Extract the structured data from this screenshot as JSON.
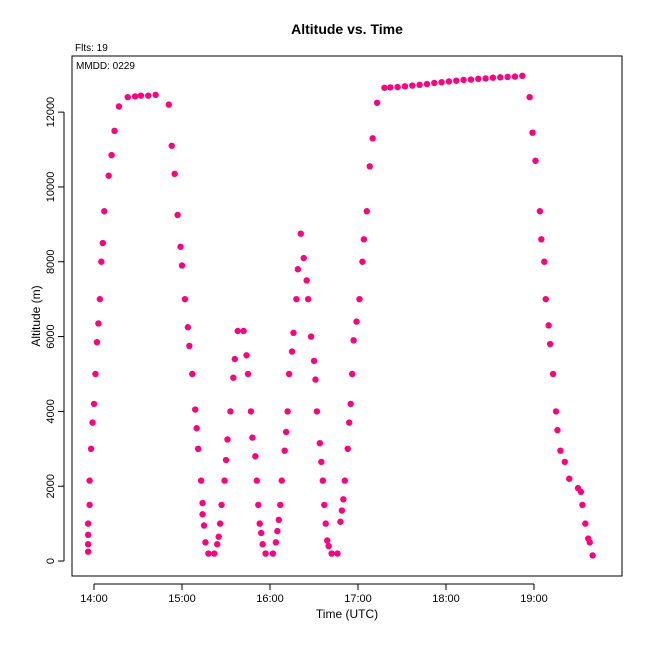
{
  "chart_data": {
    "type": "scatter",
    "title": "Altitude  vs. Time",
    "xlabel": "Time (UTC)",
    "ylabel": "Altitude (m)",
    "annotations": {
      "flights": "Flts: 19",
      "date": "MMDD: 0229"
    },
    "x_ticks": [
      "14:00",
      "15:00",
      "16:00",
      "17:00",
      "18:00",
      "19:00"
    ],
    "y_ticks": [
      "0",
      "2000",
      "4000",
      "6000",
      "8000",
      "10000",
      "12000"
    ],
    "xlim": [
      "13:45",
      "20:00"
    ],
    "ylim": [
      -400,
      13500
    ],
    "grid": false,
    "legend": "none",
    "point_color": "#ff0080",
    "points": [
      [
        "13:56",
        250
      ],
      [
        "13:56",
        450
      ],
      [
        "13:56",
        700
      ],
      [
        "13:56",
        1000
      ],
      [
        "13:57",
        1500
      ],
      [
        "13:57",
        2150
      ],
      [
        "13:58",
        3000
      ],
      [
        "13:59",
        3700
      ],
      [
        "14:00",
        4200
      ],
      [
        "14:01",
        5000
      ],
      [
        "14:02",
        5850
      ],
      [
        "14:03",
        6350
      ],
      [
        "14:04",
        7000
      ],
      [
        "14:05",
        8000
      ],
      [
        "14:06",
        8500
      ],
      [
        "14:07",
        9350
      ],
      [
        "14:10",
        10300
      ],
      [
        "14:12",
        10850
      ],
      [
        "14:14",
        11500
      ],
      [
        "14:17",
        12150
      ],
      [
        "14:23",
        12400
      ],
      [
        "14:28",
        12420
      ],
      [
        "14:32",
        12440
      ],
      [
        "14:37",
        12440
      ],
      [
        "14:42",
        12460
      ],
      [
        "14:51",
        12200
      ],
      [
        "14:53",
        11100
      ],
      [
        "14:55",
        10350
      ],
      [
        "14:57",
        9250
      ],
      [
        "14:59",
        8400
      ],
      [
        "15:00",
        7900
      ],
      [
        "15:02",
        7000
      ],
      [
        "15:04",
        6250
      ],
      [
        "15:05",
        5750
      ],
      [
        "15:07",
        5000
      ],
      [
        "15:09",
        4050
      ],
      [
        "15:10",
        3550
      ],
      [
        "15:11",
        3000
      ],
      [
        "15:13",
        2150
      ],
      [
        "15:14",
        1550
      ],
      [
        "15:14",
        1250
      ],
      [
        "15:15",
        950
      ],
      [
        "15:16",
        500
      ],
      [
        "15:18",
        200
      ],
      [
        "15:22",
        200
      ],
      [
        "15:24",
        450
      ],
      [
        "15:25",
        650
      ],
      [
        "15:26",
        1000
      ],
      [
        "15:27",
        1500
      ],
      [
        "15:29",
        2150
      ],
      [
        "15:30",
        2700
      ],
      [
        "15:31",
        3250
      ],
      [
        "15:33",
        4000
      ],
      [
        "15:35",
        4900
      ],
      [
        "15:36",
        5400
      ],
      [
        "15:38",
        6150
      ],
      [
        "15:42",
        6150
      ],
      [
        "15:44",
        5500
      ],
      [
        "15:45",
        5000
      ],
      [
        "15:47",
        4000
      ],
      [
        "15:48",
        3300
      ],
      [
        "15:50",
        2800
      ],
      [
        "15:51",
        2150
      ],
      [
        "15:52",
        1500
      ],
      [
        "15:53",
        1000
      ],
      [
        "15:54",
        750
      ],
      [
        "15:55",
        450
      ],
      [
        "15:57",
        200
      ],
      [
        "16:02",
        200
      ],
      [
        "16:04",
        500
      ],
      [
        "16:05",
        800
      ],
      [
        "16:06",
        1100
      ],
      [
        "16:07",
        1500
      ],
      [
        "16:08",
        2150
      ],
      [
        "16:10",
        2950
      ],
      [
        "16:11",
        3450
      ],
      [
        "16:12",
        4000
      ],
      [
        "16:13",
        5000
      ],
      [
        "16:15",
        5600
      ],
      [
        "16:16",
        6100
      ],
      [
        "16:18",
        7000
      ],
      [
        "16:19",
        7800
      ],
      [
        "16:21",
        8750
      ],
      [
        "16:23",
        8100
      ],
      [
        "16:25",
        7500
      ],
      [
        "16:26",
        7000
      ],
      [
        "16:28",
        6000
      ],
      [
        "16:30",
        5350
      ],
      [
        "16:31",
        4850
      ],
      [
        "16:32",
        4000
      ],
      [
        "16:34",
        3150
      ],
      [
        "16:35",
        2650
      ],
      [
        "16:36",
        2150
      ],
      [
        "16:37",
        1500
      ],
      [
        "16:38",
        1000
      ],
      [
        "16:39",
        550
      ],
      [
        "16:40",
        400
      ],
      [
        "16:42",
        200
      ],
      [
        "16:46",
        200
      ],
      [
        "16:48",
        1050
      ],
      [
        "16:49",
        1350
      ],
      [
        "16:50",
        1650
      ],
      [
        "16:51",
        2150
      ],
      [
        "16:53",
        3000
      ],
      [
        "16:54",
        3700
      ],
      [
        "16:55",
        4200
      ],
      [
        "16:56",
        5000
      ],
      [
        "16:57",
        5900
      ],
      [
        "16:59",
        6400
      ],
      [
        "17:01",
        7000
      ],
      [
        "17:03",
        8000
      ],
      [
        "17:04",
        8600
      ],
      [
        "17:06",
        9350
      ],
      [
        "17:08",
        10550
      ],
      [
        "17:10",
        11300
      ],
      [
        "17:13",
        12250
      ],
      [
        "17:18",
        12650
      ],
      [
        "17:22",
        12660
      ],
      [
        "17:27",
        12670
      ],
      [
        "17:32",
        12690
      ],
      [
        "17:37",
        12710
      ],
      [
        "17:42",
        12730
      ],
      [
        "17:47",
        12750
      ],
      [
        "17:52",
        12780
      ],
      [
        "17:57",
        12800
      ],
      [
        "18:02",
        12820
      ],
      [
        "18:07",
        12840
      ],
      [
        "18:12",
        12860
      ],
      [
        "18:17",
        12870
      ],
      [
        "18:22",
        12890
      ],
      [
        "18:27",
        12900
      ],
      [
        "18:32",
        12920
      ],
      [
        "18:37",
        12930
      ],
      [
        "18:42",
        12940
      ],
      [
        "18:47",
        12950
      ],
      [
        "18:52",
        12970
      ],
      [
        "18:57",
        12400
      ],
      [
        "18:59",
        11450
      ],
      [
        "19:01",
        10700
      ],
      [
        "19:04",
        9350
      ],
      [
        "19:05",
        8600
      ],
      [
        "19:07",
        8000
      ],
      [
        "19:08",
        7000
      ],
      [
        "19:10",
        6300
      ],
      [
        "19:11",
        5800
      ],
      [
        "19:13",
        5000
      ],
      [
        "19:15",
        4000
      ],
      [
        "19:16",
        3500
      ],
      [
        "19:18",
        2950
      ],
      [
        "19:21",
        2650
      ],
      [
        "19:24",
        2200
      ],
      [
        "19:30",
        1950
      ],
      [
        "19:32",
        1850
      ],
      [
        "19:33",
        1500
      ],
      [
        "19:35",
        1000
      ],
      [
        "19:37",
        600
      ],
      [
        "19:38",
        500
      ],
      [
        "19:40",
        150
      ]
    ]
  }
}
